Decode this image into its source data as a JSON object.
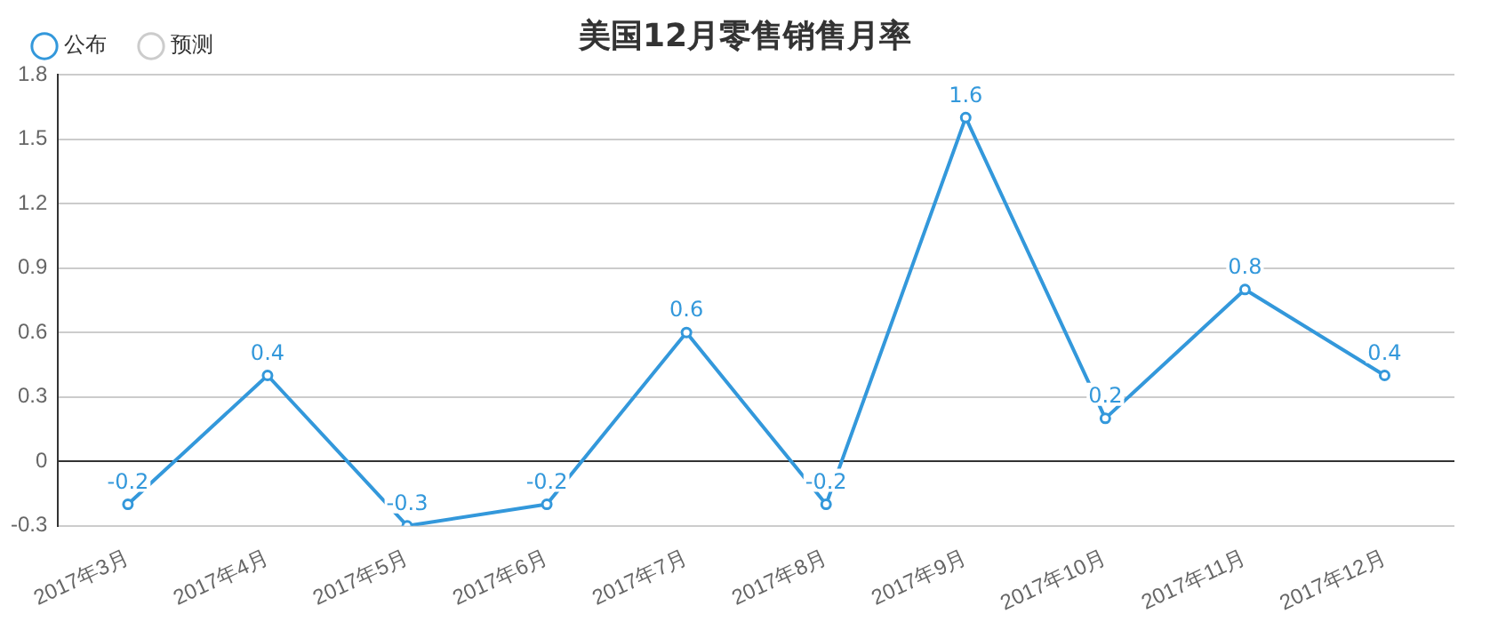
{
  "chart_data": {
    "type": "line",
    "title": "美国12月零售销售月率",
    "categories": [
      "2017年3月",
      "2017年4月",
      "2017年5月",
      "2017年6月",
      "2017年7月",
      "2017年8月",
      "2017年9月",
      "2017年10月",
      "2017年11月",
      "2017年12月"
    ],
    "series": [
      {
        "name": "公布",
        "color": "#3398db",
        "values": [
          -0.2,
          0.4,
          -0.3,
          -0.2,
          0.6,
          -0.2,
          1.6,
          0.2,
          0.8,
          0.4
        ]
      },
      {
        "name": "预测",
        "color": "#cccccc",
        "values": [
          null,
          null,
          null,
          null,
          null,
          null,
          null,
          null,
          null,
          null
        ]
      }
    ],
    "ylim": [
      -0.3,
      1.8
    ],
    "yticks": [
      -0.3,
      0,
      0.3,
      0.6,
      0.9,
      1.2,
      1.5,
      1.8
    ],
    "grid": "y",
    "legend": "top left",
    "marker": "circle",
    "line_style": "solid",
    "data_labels": true
  }
}
